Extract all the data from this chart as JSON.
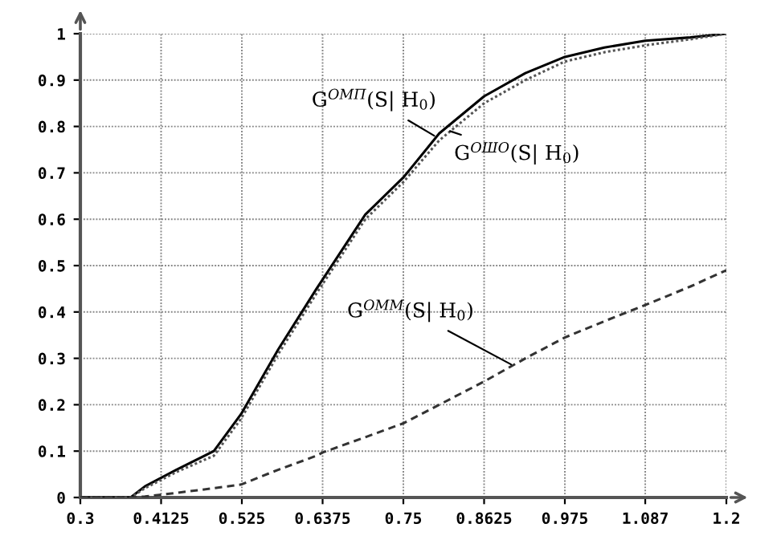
{
  "chart_data": {
    "type": "line",
    "x": [
      0.3,
      0.37,
      0.39,
      0.434,
      0.486,
      0.524,
      0.576,
      0.629,
      0.6375,
      0.697,
      0.75,
      0.8,
      0.8625,
      0.92,
      0.975,
      1.03,
      1.087,
      1.15,
      1.2
    ],
    "series": [
      {
        "color": "#000000",
        "line_style": "solid",
        "values": [
          0,
          0,
          0.024,
          0.06,
          0.1,
          0.18,
          0.32,
          0.45,
          0.47,
          0.61,
          0.69,
          0.785,
          0.865,
          0.915,
          0.95,
          0.97,
          0.985,
          0.992,
          1.0
        ]
      },
      {
        "color": "#555555",
        "line_style": "dotted",
        "values": [
          0,
          0,
          0.02,
          0.055,
          0.09,
          0.17,
          0.31,
          0.44,
          0.46,
          0.6,
          0.68,
          0.77,
          0.85,
          0.9,
          0.94,
          0.96,
          0.975,
          0.988,
          1.0
        ]
      },
      {
        "color": "#333333",
        "line_style": "dashed",
        "values": [
          0,
          0,
          0.002,
          0.01,
          0.02,
          0.028,
          0.06,
          0.09,
          0.097,
          0.13,
          0.16,
          0.2,
          0.25,
          0.3,
          0.345,
          0.38,
          0.415,
          0.455,
          0.49
        ]
      }
    ],
    "xlim": [
      0.3,
      1.2
    ],
    "ylim": [
      0,
      1
    ],
    "xticks": [
      0.3,
      0.4125,
      0.525,
      0.6375,
      0.75,
      0.8625,
      0.975,
      1.087,
      1.2
    ],
    "yticks": [
      0,
      0.1,
      0.2,
      0.3,
      0.4,
      0.5,
      0.6,
      0.7,
      0.8,
      0.9,
      1
    ],
    "grid": true,
    "marker": "none",
    "annotations": [
      {
        "text": "G$^{ОМП}$(S| H$_{0}$)",
        "x": 0.793,
        "y": 0.78
      },
      {
        "text": "G$^{ОШО}$(S| H$_{0}$)",
        "x": 0.815,
        "y": 0.79
      },
      {
        "text": "G$^{ОММ}$(S| H$_{0}$)",
        "x": 0.9,
        "y": 0.287
      }
    ]
  }
}
